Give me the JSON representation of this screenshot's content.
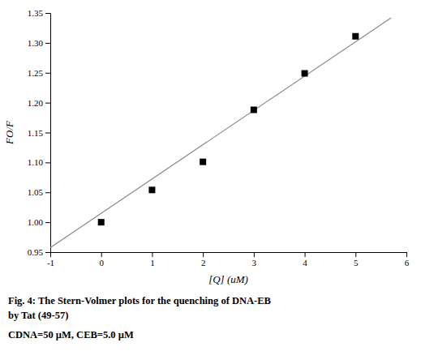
{
  "chart_data": {
    "type": "scatter",
    "xlabel": "[Q] (uM)",
    "ylabel": "FO/F",
    "annotations": [
      "Fig. 4: The Stern-Volmer plots for the quenching of DNA-EB",
      "by Tat (49-57)",
      "CDNA=50 µM, CEB=5.0 µM"
    ],
    "series": [
      {
        "type": "line",
        "color": "#888888",
        "x": [
          -1,
          5.7
        ],
        "values": [
          0.9575,
          1.342
        ]
      },
      {
        "type": "scatter",
        "marker": "square",
        "color": "black",
        "x": [
          0,
          1,
          2,
          3,
          4,
          5
        ],
        "values": [
          1.0,
          1.054,
          1.101,
          1.188,
          1.249,
          1.311
        ]
      }
    ],
    "xlim": [
      -1,
      6
    ],
    "ylim": [
      0.95,
      1.35
    ],
    "xticks": [
      -1,
      0,
      1,
      2,
      3,
      4,
      5,
      6
    ],
    "yticks": [
      0.95,
      {
        "value": 1.0,
        "label": "1.00"
      },
      1.05,
      {
        "value": 1.1,
        "label": "1.10"
      },
      1.15,
      {
        "value": 1.2,
        "label": "1.20"
      },
      1.25,
      {
        "value": 1.3,
        "label": "1.30"
      },
      1.35
    ],
    "grid": false
  }
}
